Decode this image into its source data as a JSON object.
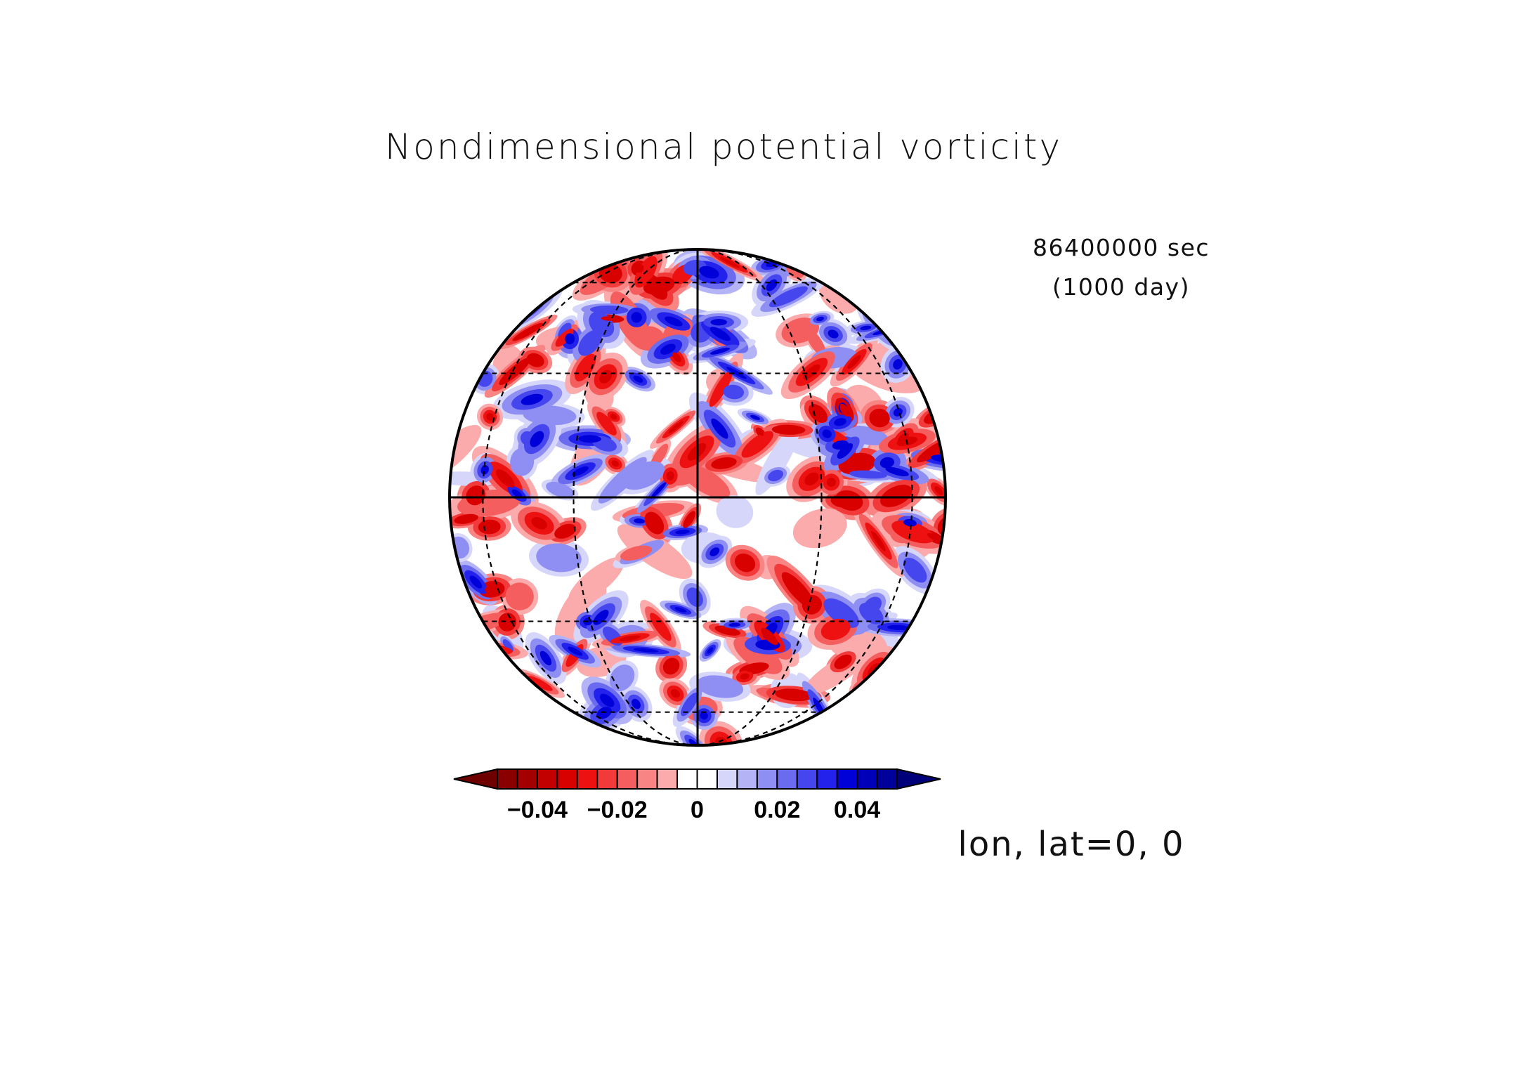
{
  "figure": {
    "title": "Nondimensional potential vorticity",
    "time_line1": "86400000 sec",
    "time_line2": "(1000 day)",
    "projection_label": "lon, lat=0, 0"
  },
  "chart_data": {
    "type": "heatmap",
    "projection": "orthographic",
    "center": {
      "lon": 0,
      "lat": 0
    },
    "field": "Nondimensional potential vorticity",
    "time": {
      "seconds": 86400000,
      "days": 1000
    },
    "colorbar": {
      "levels": [
        -0.05,
        -0.045,
        -0.04,
        -0.035,
        -0.03,
        -0.025,
        -0.02,
        -0.015,
        -0.01,
        -0.005,
        0,
        0.005,
        0.01,
        0.015,
        0.02,
        0.025,
        0.03,
        0.035,
        0.04,
        0.045,
        0.05
      ],
      "colors": [
        "#6e0000",
        "#8a0000",
        "#a50000",
        "#c20000",
        "#d90000",
        "#ee1111",
        "#f23a3a",
        "#f55e5e",
        "#f98484",
        "#fbabab",
        "#ffffff",
        "#ffffff",
        "#d6d6fb",
        "#b3b3f6",
        "#8f8ff3",
        "#6b6bef",
        "#4646ee",
        "#2222ec",
        "#0000d8",
        "#0000b8",
        "#00009a",
        "#00007a"
      ],
      "tick_values": [
        -0.04,
        -0.02,
        0,
        0.02,
        0.04
      ],
      "tick_labels": [
        "−0.04",
        "−0.02",
        "0",
        "0.02",
        "0.04"
      ],
      "extend": "both"
    },
    "grid": {
      "meridians_deg": [
        -60,
        -30,
        0,
        30,
        60
      ],
      "parallels_deg": [
        -60,
        -30,
        0,
        30,
        60
      ]
    }
  }
}
